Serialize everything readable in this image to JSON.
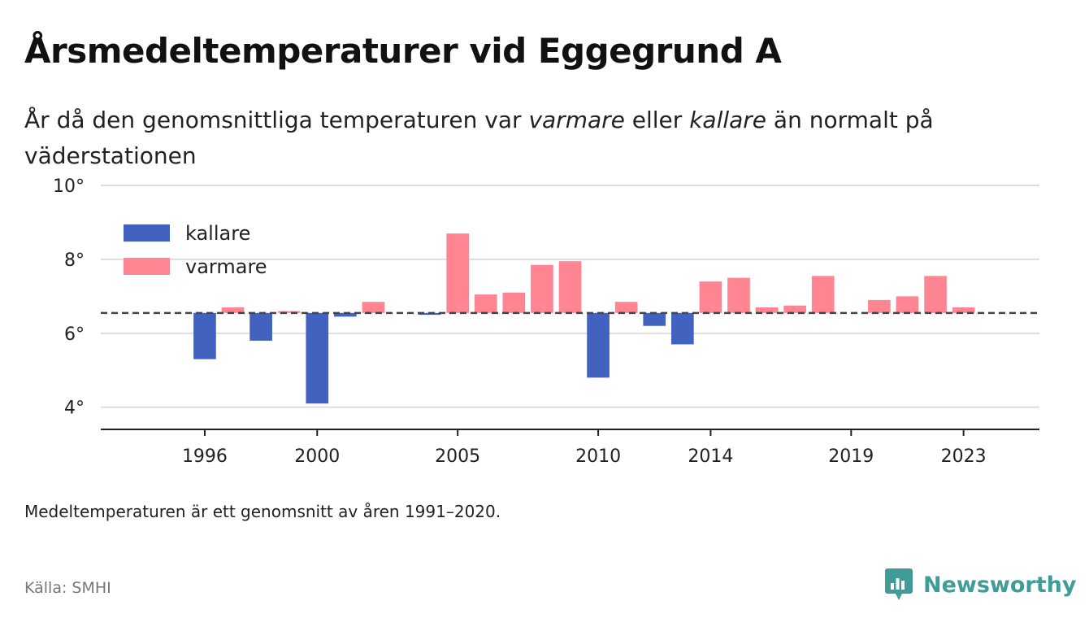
{
  "title": "Årsmedeltemperaturer vid Eggegrund A",
  "subtitle": {
    "part1": "År då den genomsnittliga temperaturen var ",
    "em1": "varmare",
    "part2": " eller ",
    "em2": "kallare",
    "part3": " än normalt på väderstationen"
  },
  "note": "Medeltemperaturen är ett genomsnitt av åren 1991–2020.",
  "source": "Källa: SMHI",
  "brand": {
    "name": "Newsworthy",
    "logo_icon": "newsworthy-logo-icon"
  },
  "colors": {
    "kallare": "#4262bf",
    "varmare": "#ff8593",
    "reference_line": "#444444",
    "grid": "#dddddd",
    "axis": "#222222",
    "brand": "#3f9c98"
  },
  "chart_data": {
    "type": "bar",
    "baseline": 6.55,
    "ylim": [
      3.4,
      10
    ],
    "yticks": [
      4,
      6,
      8,
      10
    ],
    "ytick_labels": [
      "4°",
      "6°",
      "8°",
      "10°"
    ],
    "xlim": [
      1992.3,
      2025.7
    ],
    "xticks": [
      1996,
      2000,
      2005,
      2010,
      2014,
      2019,
      2023
    ],
    "xtick_labels": [
      "1996",
      "2000",
      "2005",
      "2010",
      "2014",
      "2019",
      "2023"
    ],
    "legend": {
      "position": "top-left",
      "entries": [
        {
          "key": "kallare",
          "label": "kallare"
        },
        {
          "key": "varmare",
          "label": "varmare"
        }
      ]
    },
    "grid": true,
    "x": [
      1996,
      1997,
      1998,
      1999,
      2000,
      2001,
      2002,
      2003,
      2004,
      2005,
      2006,
      2007,
      2008,
      2009,
      2010,
      2011,
      2012,
      2013,
      2014,
      2015,
      2016,
      2017,
      2018,
      2019,
      2020,
      2021,
      2022,
      2023
    ],
    "values": [
      5.3,
      6.7,
      5.8,
      6.6,
      4.1,
      6.45,
      6.85,
      6.55,
      6.5,
      8.7,
      7.05,
      7.1,
      7.85,
      7.95,
      4.8,
      6.85,
      6.2,
      5.7,
      7.4,
      7.5,
      6.7,
      6.75,
      7.55,
      6.55,
      6.9,
      7.0,
      7.55,
      6.7
    ]
  }
}
